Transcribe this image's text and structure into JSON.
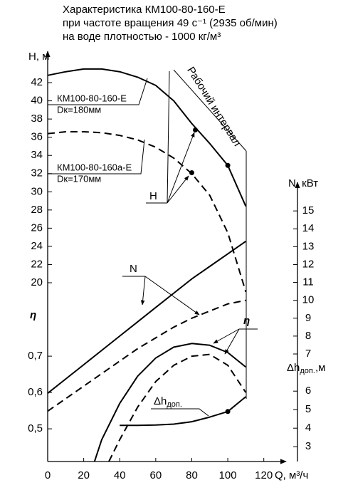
{
  "chart_data": {
    "type": "line",
    "title_lines": [
      "Характеристика КМ100-80-160-Е",
      "при частоте вращения 49 с⁻¹ (2935 об/мин)",
      "на воде плотностью - 1000 кг/м³"
    ],
    "xlabel": "Q, м³/ч",
    "xlim": [
      0,
      130
    ],
    "xticks": [
      0,
      20,
      40,
      60,
      80,
      100,
      120
    ],
    "axes": {
      "H": {
        "label": "H, м",
        "lim": [
          20,
          44
        ],
        "ticks": [
          20,
          22,
          24,
          26,
          28,
          30,
          32,
          34,
          36,
          38,
          40,
          42
        ]
      },
      "eta": {
        "label": "η",
        "lim": [
          0.41,
          0.81
        ],
        "ticks": [
          {
            "value": 0.5,
            "label": "0,5"
          },
          {
            "value": 0.6,
            "label": "0,6"
          },
          {
            "value": 0.7,
            "label": "0,7"
          }
        ]
      },
      "N": {
        "label": "N, кВт",
        "lim": [
          7,
          16.5
        ],
        "ticks": [
          7,
          8,
          9,
          10,
          11,
          12,
          13,
          14,
          15
        ]
      },
      "dh": {
        "label": {
          "main": "Δh",
          "sub": "доп.",
          "unit": ",м"
        },
        "lim": [
          2.2,
          7.2
        ],
        "ticks": [
          3,
          4,
          5,
          6
        ]
      }
    },
    "series": [
      {
        "axis": "H",
        "dashed": false,
        "color": "#000000",
        "x": [
          0,
          10,
          20,
          30,
          40,
          50,
          60,
          70,
          80,
          90,
          100,
          110
        ],
        "values": [
          42.8,
          43.2,
          43.5,
          43.5,
          43.2,
          42.6,
          41.7,
          40.0,
          37.5,
          35.3,
          32.9,
          28.4
        ]
      },
      {
        "axis": "H",
        "dashed": true,
        "color": "#000000",
        "x": [
          0,
          10,
          20,
          30,
          40,
          50,
          60,
          70,
          80,
          90,
          100,
          110
        ],
        "values": [
          36.4,
          36.6,
          36.6,
          36.5,
          36.2,
          35.7,
          34.9,
          33.7,
          32.0,
          29.6,
          25.5,
          19.0
        ]
      },
      {
        "axis": "N",
        "dashed": false,
        "color": "#000000",
        "x": [
          0,
          10,
          20,
          30,
          40,
          50,
          60,
          70,
          80,
          90,
          100,
          110
        ],
        "values": [
          4.8,
          5.6,
          6.4,
          7.2,
          8.0,
          8.8,
          9.6,
          10.4,
          11.2,
          11.9,
          12.6,
          13.3
        ]
      },
      {
        "axis": "N",
        "dashed": true,
        "color": "#000000",
        "x": [
          0,
          10,
          20,
          30,
          40,
          50,
          60,
          70,
          80,
          90,
          100,
          110
        ],
        "values": [
          3.8,
          4.5,
          5.2,
          5.9,
          6.6,
          7.3,
          7.9,
          8.5,
          9.0,
          9.4,
          9.8,
          10.0
        ]
      },
      {
        "axis": "eta",
        "dashed": false,
        "color": "#000000",
        "x": [
          26,
          30,
          40,
          50,
          60,
          70,
          80,
          90,
          100,
          110
        ],
        "values": [
          0.41,
          0.47,
          0.57,
          0.645,
          0.695,
          0.725,
          0.735,
          0.73,
          0.71,
          0.67
        ]
      },
      {
        "axis": "eta",
        "dashed": true,
        "color": "#000000",
        "x": [
          34,
          40,
          50,
          60,
          70,
          80,
          90,
          100,
          110
        ],
        "values": [
          0.41,
          0.47,
          0.56,
          0.63,
          0.675,
          0.7,
          0.705,
          0.675,
          0.6
        ]
      },
      {
        "axis": "dh",
        "dashed": false,
        "color": "#000000",
        "x": [
          40,
          50,
          60,
          70,
          80,
          90,
          100,
          110
        ],
        "values": [
          4.15,
          4.15,
          4.17,
          4.22,
          4.35,
          4.6,
          4.9,
          5.7
        ]
      }
    ],
    "markers": [
      {
        "axis": "H",
        "x": 82,
        "value": 36.8
      },
      {
        "axis": "H",
        "x": 80,
        "value": 32.1
      },
      {
        "axis": "H",
        "x": 100,
        "value": 32.9
      },
      {
        "axis": "dh",
        "x": 100,
        "value": 4.9
      }
    ],
    "annotations": {
      "curve_a": "КМ100-80-160-Е",
      "diam_a": "Dк=180мм",
      "curve_b": "КМ100-80-160а-Е",
      "diam_b": "Dк=170мм",
      "h": "H",
      "n": "N",
      "eta": "η",
      "dh": {
        "main": "Δh",
        "sub": "доп."
      },
      "interval": "Рабочий интервал"
    }
  }
}
